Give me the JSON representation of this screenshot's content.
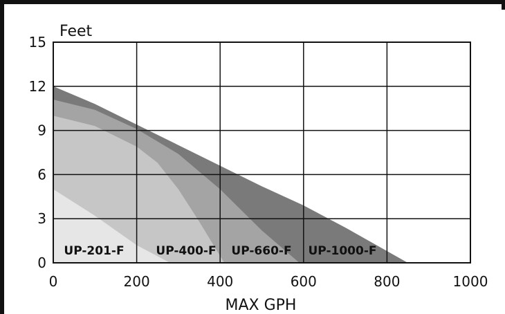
{
  "chart_data": {
    "type": "area",
    "title": "",
    "ylabel": "Feet",
    "xlabel": "MAX GPH",
    "xlim": [
      0,
      1000
    ],
    "ylim": [
      0,
      15
    ],
    "xticks": [
      0,
      200,
      400,
      600,
      800,
      1000
    ],
    "yticks": [
      0,
      3,
      6,
      9,
      12,
      15
    ],
    "grid": true,
    "series": [
      {
        "name": "UP-1000-F",
        "color": "#7a7a7a",
        "x": [
          0,
          100,
          200,
          300,
          400,
          500,
          600,
          700,
          800,
          850
        ],
        "y": [
          12,
          10.8,
          9.4,
          8.0,
          6.6,
          5.2,
          3.9,
          2.4,
          0.8,
          0
        ]
      },
      {
        "name": "UP-660-F",
        "color": "#a4a4a4",
        "x": [
          0,
          100,
          200,
          300,
          400,
          500,
          590
        ],
        "y": [
          11.1,
          10.4,
          9.1,
          7.4,
          5.0,
          2.2,
          0
        ]
      },
      {
        "name": "UP-400-F",
        "color": "#c6c6c6",
        "x": [
          0,
          100,
          200,
          250,
          300,
          350,
          410
        ],
        "y": [
          10,
          9.3,
          7.9,
          6.8,
          5.0,
          2.8,
          0
        ]
      },
      {
        "name": "UP-201-F",
        "color": "#e6e6e6",
        "x": [
          0,
          100,
          200,
          280
        ],
        "y": [
          5,
          3.2,
          1.2,
          0
        ]
      }
    ],
    "labels": [
      "UP-201-F",
      "UP-400-F",
      "UP-660-F",
      "UP-1000-F"
    ]
  }
}
